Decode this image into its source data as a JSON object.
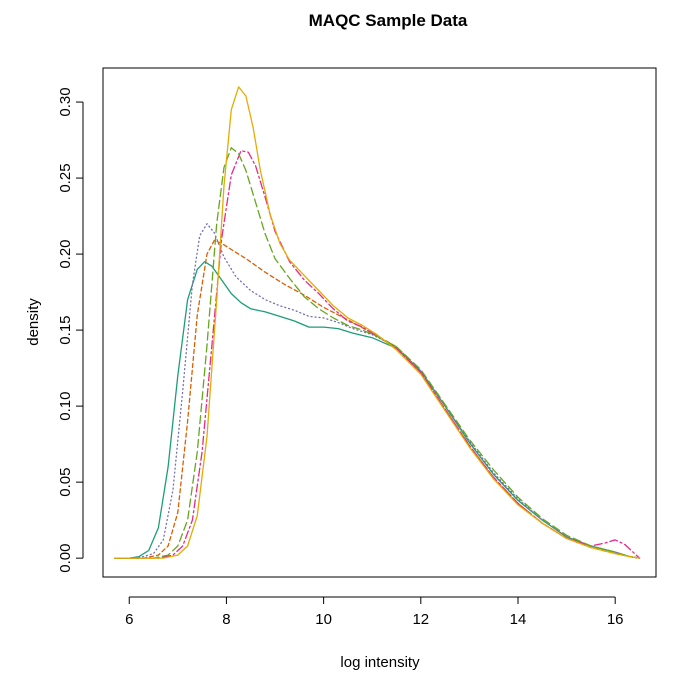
{
  "chart_data": {
    "type": "line",
    "title": "MAQC Sample Data",
    "xlabel": "log intensity",
    "ylabel": "density",
    "xlim": [
      5.46,
      16.84
    ],
    "ylim": [
      -0.0124,
      0.3224
    ],
    "x_ticks": [
      6,
      8,
      10,
      12,
      14,
      16
    ],
    "y_ticks": [
      0.0,
      0.05,
      0.1,
      0.15,
      0.2,
      0.25,
      0.3
    ],
    "y_tick_labels": [
      "0.00",
      "0.05",
      "0.10",
      "0.15",
      "0.20",
      "0.25",
      "0.30"
    ],
    "grid": false,
    "legend": "none",
    "series": [
      {
        "color": "#1b9e77",
        "dash": "solid",
        "points": [
          [
            5.7,
            0
          ],
          [
            6.0,
            0
          ],
          [
            6.2,
            0.001
          ],
          [
            6.4,
            0.005
          ],
          [
            6.6,
            0.02
          ],
          [
            6.8,
            0.06
          ],
          [
            7.0,
            0.12
          ],
          [
            7.2,
            0.17
          ],
          [
            7.4,
            0.19
          ],
          [
            7.55,
            0.195
          ],
          [
            7.7,
            0.192
          ],
          [
            7.9,
            0.183
          ],
          [
            8.1,
            0.174
          ],
          [
            8.3,
            0.168
          ],
          [
            8.5,
            0.164
          ],
          [
            8.8,
            0.162
          ],
          [
            9.1,
            0.159
          ],
          [
            9.4,
            0.156
          ],
          [
            9.7,
            0.152
          ],
          [
            10.0,
            0.152
          ],
          [
            10.3,
            0.151
          ],
          [
            10.6,
            0.148
          ],
          [
            11.0,
            0.145
          ],
          [
            11.5,
            0.138
          ],
          [
            12.0,
            0.123
          ],
          [
            12.5,
            0.1
          ],
          [
            13.0,
            0.076
          ],
          [
            13.5,
            0.055
          ],
          [
            14.0,
            0.038
          ],
          [
            14.5,
            0.025
          ],
          [
            15.0,
            0.014
          ],
          [
            15.5,
            0.008
          ],
          [
            16.0,
            0.004
          ],
          [
            16.3,
            0.001
          ],
          [
            16.5,
            0
          ]
        ]
      },
      {
        "color": "#7570b3",
        "dash": "1,3",
        "points": [
          [
            5.7,
            0
          ],
          [
            6.1,
            0
          ],
          [
            6.3,
            0.001
          ],
          [
            6.5,
            0.003
          ],
          [
            6.7,
            0.012
          ],
          [
            6.9,
            0.045
          ],
          [
            7.1,
            0.11
          ],
          [
            7.3,
            0.18
          ],
          [
            7.45,
            0.212
          ],
          [
            7.6,
            0.22
          ],
          [
            7.75,
            0.214
          ],
          [
            7.95,
            0.198
          ],
          [
            8.2,
            0.185
          ],
          [
            8.5,
            0.176
          ],
          [
            8.8,
            0.17
          ],
          [
            9.1,
            0.166
          ],
          [
            9.4,
            0.163
          ],
          [
            9.7,
            0.159
          ],
          [
            10.0,
            0.158
          ],
          [
            10.3,
            0.155
          ],
          [
            10.6,
            0.151
          ],
          [
            11.0,
            0.147
          ],
          [
            11.5,
            0.139
          ],
          [
            12.0,
            0.123
          ],
          [
            12.5,
            0.1
          ],
          [
            13.0,
            0.077
          ],
          [
            13.5,
            0.056
          ],
          [
            14.0,
            0.039
          ],
          [
            14.5,
            0.025
          ],
          [
            15.0,
            0.014
          ],
          [
            15.5,
            0.008
          ],
          [
            16.0,
            0.004
          ],
          [
            16.3,
            0.001
          ],
          [
            16.5,
            0
          ]
        ]
      },
      {
        "color": "#d95f02",
        "dash": "4,3",
        "points": [
          [
            5.7,
            0
          ],
          [
            6.3,
            0
          ],
          [
            6.6,
            0.002
          ],
          [
            6.8,
            0.008
          ],
          [
            7.0,
            0.03
          ],
          [
            7.2,
            0.09
          ],
          [
            7.4,
            0.16
          ],
          [
            7.6,
            0.2
          ],
          [
            7.75,
            0.209
          ],
          [
            7.9,
            0.207
          ],
          [
            8.1,
            0.203
          ],
          [
            8.4,
            0.197
          ],
          [
            8.8,
            0.188
          ],
          [
            9.2,
            0.18
          ],
          [
            9.6,
            0.173
          ],
          [
            10.0,
            0.165
          ],
          [
            10.3,
            0.16
          ],
          [
            10.6,
            0.155
          ],
          [
            11.0,
            0.148
          ],
          [
            11.5,
            0.139
          ],
          [
            12.0,
            0.122
          ],
          [
            12.5,
            0.098
          ],
          [
            13.0,
            0.074
          ],
          [
            13.5,
            0.053
          ],
          [
            14.0,
            0.036
          ],
          [
            14.5,
            0.023
          ],
          [
            15.0,
            0.013
          ],
          [
            15.5,
            0.007
          ],
          [
            16.0,
            0.003
          ],
          [
            16.3,
            0.001
          ],
          [
            16.5,
            0
          ]
        ]
      },
      {
        "color": "#e7298a",
        "dash": "8,3,2,3",
        "points": [
          [
            5.7,
            0
          ],
          [
            6.6,
            0
          ],
          [
            6.9,
            0.002
          ],
          [
            7.1,
            0.008
          ],
          [
            7.3,
            0.025
          ],
          [
            7.5,
            0.07
          ],
          [
            7.7,
            0.14
          ],
          [
            7.9,
            0.21
          ],
          [
            8.1,
            0.252
          ],
          [
            8.3,
            0.268
          ],
          [
            8.45,
            0.267
          ],
          [
            8.6,
            0.258
          ],
          [
            8.8,
            0.237
          ],
          [
            9.0,
            0.215
          ],
          [
            9.3,
            0.195
          ],
          [
            9.6,
            0.183
          ],
          [
            9.9,
            0.174
          ],
          [
            10.2,
            0.164
          ],
          [
            10.5,
            0.156
          ],
          [
            10.8,
            0.152
          ],
          [
            11.1,
            0.146
          ],
          [
            11.5,
            0.138
          ],
          [
            12.0,
            0.122
          ],
          [
            12.5,
            0.098
          ],
          [
            13.0,
            0.074
          ],
          [
            13.5,
            0.053
          ],
          [
            14.0,
            0.036
          ],
          [
            14.5,
            0.023
          ],
          [
            15.0,
            0.013
          ],
          [
            15.5,
            0.008
          ],
          [
            15.8,
            0.01
          ],
          [
            16.0,
            0.012
          ],
          [
            16.2,
            0.009
          ],
          [
            16.4,
            0.003
          ],
          [
            16.5,
            0
          ]
        ]
      },
      {
        "color": "#66a61e",
        "dash": "8,4",
        "points": [
          [
            5.7,
            0
          ],
          [
            6.5,
            0
          ],
          [
            6.8,
            0.002
          ],
          [
            7.0,
            0.008
          ],
          [
            7.2,
            0.025
          ],
          [
            7.4,
            0.07
          ],
          [
            7.6,
            0.14
          ],
          [
            7.8,
            0.22
          ],
          [
            7.95,
            0.257
          ],
          [
            8.1,
            0.27
          ],
          [
            8.25,
            0.266
          ],
          [
            8.4,
            0.255
          ],
          [
            8.6,
            0.234
          ],
          [
            8.8,
            0.213
          ],
          [
            9.0,
            0.197
          ],
          [
            9.3,
            0.184
          ],
          [
            9.6,
            0.172
          ],
          [
            9.9,
            0.164
          ],
          [
            10.2,
            0.158
          ],
          [
            10.5,
            0.153
          ],
          [
            10.8,
            0.15
          ],
          [
            11.1,
            0.146
          ],
          [
            11.5,
            0.139
          ],
          [
            12.0,
            0.124
          ],
          [
            12.5,
            0.101
          ],
          [
            13.0,
            0.078
          ],
          [
            13.5,
            0.058
          ],
          [
            14.0,
            0.04
          ],
          [
            14.5,
            0.026
          ],
          [
            15.0,
            0.015
          ],
          [
            15.5,
            0.008
          ],
          [
            16.0,
            0.004
          ],
          [
            16.3,
            0.001
          ],
          [
            16.5,
            0
          ]
        ]
      },
      {
        "color": "#e6ab02",
        "dash": "solid",
        "points": [
          [
            5.7,
            0
          ],
          [
            6.7,
            0
          ],
          [
            7.0,
            0.002
          ],
          [
            7.2,
            0.008
          ],
          [
            7.4,
            0.028
          ],
          [
            7.6,
            0.08
          ],
          [
            7.8,
            0.17
          ],
          [
            7.95,
            0.245
          ],
          [
            8.1,
            0.295
          ],
          [
            8.25,
            0.31
          ],
          [
            8.4,
            0.304
          ],
          [
            8.55,
            0.283
          ],
          [
            8.7,
            0.255
          ],
          [
            8.9,
            0.226
          ],
          [
            9.1,
            0.207
          ],
          [
            9.3,
            0.196
          ],
          [
            9.6,
            0.186
          ],
          [
            9.9,
            0.176
          ],
          [
            10.2,
            0.166
          ],
          [
            10.5,
            0.158
          ],
          [
            10.8,
            0.153
          ],
          [
            11.1,
            0.147
          ],
          [
            11.5,
            0.137
          ],
          [
            12.0,
            0.121
          ],
          [
            12.5,
            0.097
          ],
          [
            13.0,
            0.073
          ],
          [
            13.5,
            0.052
          ],
          [
            14.0,
            0.035
          ],
          [
            14.5,
            0.023
          ],
          [
            15.0,
            0.013
          ],
          [
            15.5,
            0.007
          ],
          [
            16.0,
            0.003
          ],
          [
            16.3,
            0.001
          ],
          [
            16.5,
            0
          ]
        ]
      }
    ]
  }
}
